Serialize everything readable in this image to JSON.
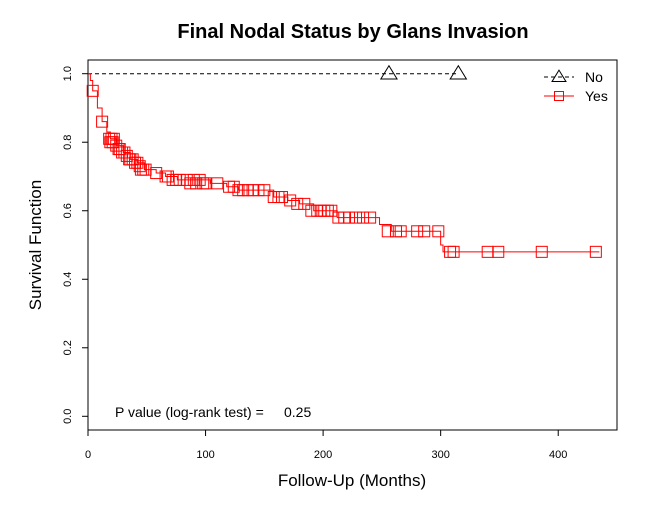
{
  "chart_data": {
    "type": "line",
    "title": "Final Nodal Status by Glans Invasion",
    "xlabel": "Follow-Up (Months)",
    "ylabel": "Survival Function",
    "xlim": [
      0,
      450
    ],
    "ylim": [
      -0.04,
      1.04
    ],
    "x_ticks": [
      0,
      100,
      200,
      300,
      400
    ],
    "y_ticks": [
      0.0,
      0.2,
      0.4,
      0.6,
      0.8,
      1.0
    ],
    "y_tick_labels": [
      "0.0",
      "0.2",
      "0.4",
      "0.6",
      "0.8",
      "1.0"
    ],
    "grid": false,
    "legend_position": "top-right",
    "annotation": {
      "label": "P value (log-rank test) =",
      "value": "0.25"
    },
    "series": [
      {
        "name": "No",
        "color": "#000000",
        "line_style": "dashed",
        "marker": "triangle",
        "steps": [
          [
            0,
            1.0
          ],
          [
            315,
            1.0
          ]
        ],
        "censor_x": [
          256,
          315
        ],
        "censor_y": [
          1.0,
          1.0
        ]
      },
      {
        "name": "Yes",
        "color": "#ff0000",
        "line_style": "solid",
        "marker": "square",
        "steps": [
          [
            0,
            1.0
          ],
          [
            2,
            0.98
          ],
          [
            4,
            0.95
          ],
          [
            8,
            0.9
          ],
          [
            12,
            0.86
          ],
          [
            16,
            0.83
          ],
          [
            19,
            0.81
          ],
          [
            24,
            0.79
          ],
          [
            30,
            0.77
          ],
          [
            36,
            0.75
          ],
          [
            42,
            0.74
          ],
          [
            48,
            0.72
          ],
          [
            58,
            0.71
          ],
          [
            66,
            0.7
          ],
          [
            76,
            0.69
          ],
          [
            104,
            0.68
          ],
          [
            118,
            0.67
          ],
          [
            128,
            0.66
          ],
          [
            158,
            0.64
          ],
          [
            170,
            0.63
          ],
          [
            180,
            0.62
          ],
          [
            192,
            0.6
          ],
          [
            212,
            0.58
          ],
          [
            248,
            0.56
          ],
          [
            258,
            0.54
          ],
          [
            300,
            0.5
          ],
          [
            302,
            0.48
          ],
          [
            435,
            0.48
          ]
        ],
        "censor_x": [
          4,
          12,
          18,
          19,
          20,
          21,
          22,
          24,
          26,
          27,
          29,
          31,
          33,
          35,
          36,
          38,
          40,
          42,
          44,
          45,
          47,
          49,
          58,
          66,
          68,
          72,
          75,
          78,
          84,
          87,
          90,
          92,
          95,
          98,
          100,
          110,
          120,
          124,
          128,
          132,
          136,
          140,
          145,
          150,
          158,
          162,
          165,
          172,
          178,
          184,
          190,
          195,
          198,
          201,
          204,
          207,
          213,
          218,
          222,
          228,
          234,
          240,
          255,
          262,
          266,
          280,
          286,
          298,
          308,
          311,
          340,
          349,
          386,
          432
        ],
        "censor_y": [
          0.95,
          0.86,
          0.81,
          0.8,
          0.81,
          0.8,
          0.81,
          0.79,
          0.78,
          0.78,
          0.77,
          0.77,
          0.76,
          0.75,
          0.75,
          0.75,
          0.74,
          0.74,
          0.73,
          0.72,
          0.72,
          0.72,
          0.71,
          0.7,
          0.7,
          0.69,
          0.69,
          0.69,
          0.69,
          0.68,
          0.69,
          0.68,
          0.69,
          0.68,
          0.68,
          0.68,
          0.67,
          0.67,
          0.66,
          0.66,
          0.66,
          0.66,
          0.66,
          0.66,
          0.64,
          0.64,
          0.64,
          0.63,
          0.62,
          0.62,
          0.6,
          0.6,
          0.6,
          0.6,
          0.6,
          0.6,
          0.58,
          0.58,
          0.58,
          0.58,
          0.58,
          0.58,
          0.54,
          0.54,
          0.54,
          0.54,
          0.54,
          0.54,
          0.48,
          0.48,
          0.48,
          0.48,
          0.48,
          0.48
        ]
      }
    ]
  }
}
